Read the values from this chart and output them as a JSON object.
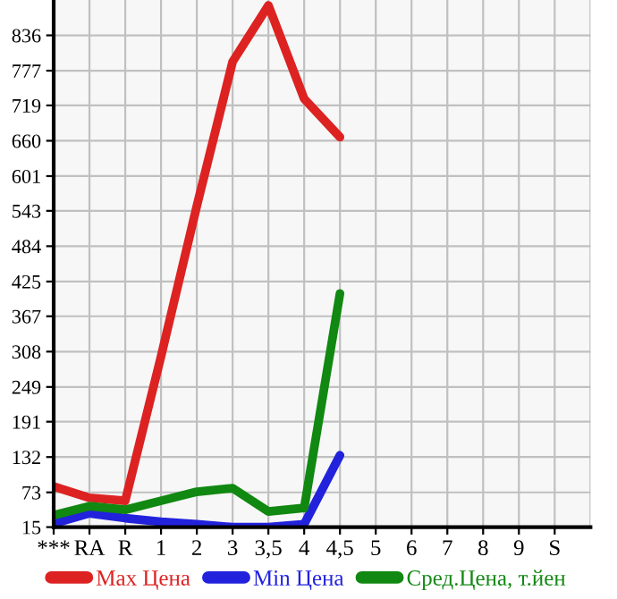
{
  "chart_data": {
    "type": "line",
    "categories": [
      "***",
      "RA",
      "R",
      "1",
      "2",
      "3",
      "3,5",
      "4",
      "4,5",
      "5",
      "6",
      "7",
      "8",
      "9",
      "S"
    ],
    "series": [
      {
        "name": "Max Цена",
        "color": "#dd2222",
        "values": [
          83,
          64,
          59,
          300,
          551,
          792,
          886,
          730,
          666,
          null,
          null,
          null,
          null,
          null,
          null
        ]
      },
      {
        "name": "Min Цена",
        "color": "#2222dd",
        "values": [
          21,
          38,
          30,
          24,
          20,
          15,
          15,
          20,
          135,
          null,
          null,
          null,
          null,
          null,
          null
        ]
      },
      {
        "name": "Сред.Цена, т.йен",
        "color": "#118811",
        "values": [
          35,
          50,
          44,
          59,
          74,
          80,
          41,
          47,
          405,
          null,
          null,
          null,
          null,
          null,
          null
        ]
      }
    ],
    "ylim": [
      15,
      895
    ],
    "yticks": [
      15,
      73,
      132,
      191,
      249,
      308,
      367,
      425,
      484,
      543,
      601,
      660,
      719,
      777,
      836
    ],
    "grid": true,
    "legend": "bottom",
    "marker": "none",
    "line_style": "solid"
  }
}
